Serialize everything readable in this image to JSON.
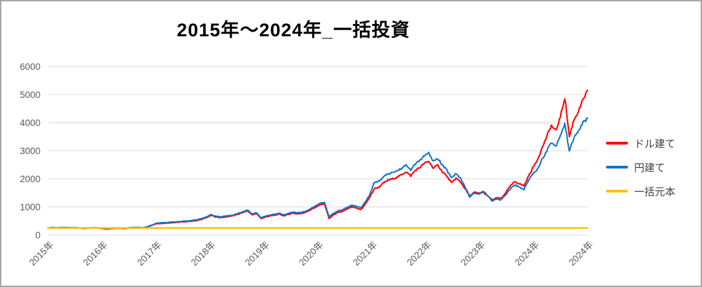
{
  "chart_data": {
    "type": "line",
    "title": "2015年～2024年_一括投資",
    "xlabel": "",
    "ylabel": "",
    "ylim": [
      0,
      6000
    ],
    "y_ticks": [
      0,
      1000,
      2000,
      3000,
      4000,
      5000,
      6000
    ],
    "x_tick_labels": [
      "2015年",
      "2016年",
      "2017年",
      "2018年",
      "2019年",
      "2020年",
      "2021年",
      "2022年",
      "2023年",
      "2024年",
      "2024年"
    ],
    "grid": "horizontal",
    "legend_position": "right",
    "x_start": "2015-01",
    "x_step": "monthly",
    "series": [
      {
        "name": "ドル建て",
        "color": "#fe0000",
        "values": [
          250,
          256,
          252,
          258,
          260,
          254,
          256,
          242,
          230,
          245,
          252,
          246,
          232,
          212,
          228,
          240,
          238,
          230,
          250,
          258,
          255,
          248,
          290,
          350,
          400,
          410,
          418,
          430,
          442,
          455,
          468,
          478,
          495,
          520,
          560,
          620,
          700,
          640,
          620,
          635,
          665,
          690,
          740,
          800,
          860,
          720,
          760,
          585,
          640,
          680,
          700,
          740,
          680,
          730,
          780,
          750,
          770,
          820,
          900,
          980,
          1080,
          1100,
          585,
          720,
          800,
          840,
          920,
          1000,
          950,
          900,
          1100,
          1350,
          1650,
          1700,
          1850,
          1950,
          2000,
          2050,
          2150,
          2250,
          2100,
          2300,
          2400,
          2550,
          2620,
          2380,
          2480,
          2250,
          2080,
          1850,
          2020,
          1880,
          1650,
          1380,
          1520,
          1480,
          1520,
          1380,
          1250,
          1320,
          1300,
          1520,
          1750,
          1900,
          1820,
          1750,
          2100,
          2400,
          2700,
          3100,
          3500,
          3900,
          3700,
          4200,
          4900,
          3500,
          4100,
          4400,
          4800,
          5150
        ]
      },
      {
        "name": "円建て",
        "color": "#1673c8",
        "values": [
          258,
          264,
          260,
          266,
          268,
          262,
          264,
          250,
          240,
          254,
          260,
          254,
          242,
          222,
          238,
          250,
          248,
          240,
          260,
          268,
          265,
          258,
          300,
          355,
          420,
          430,
          438,
          450,
          462,
          478,
          492,
          502,
          520,
          545,
          588,
          650,
          725,
          668,
          648,
          662,
          692,
          718,
          768,
          830,
          890,
          748,
          790,
          610,
          672,
          712,
          735,
          775,
          715,
          765,
          818,
          788,
          808,
          860,
          945,
          1030,
          1130,
          1160,
          650,
          770,
          860,
          900,
          985,
          1070,
          1020,
          970,
          1180,
          1440,
          1870,
          1920,
          2070,
          2170,
          2220,
          2280,
          2380,
          2480,
          2320,
          2520,
          2650,
          2820,
          2900,
          2620,
          2720,
          2480,
          2300,
          2040,
          2190,
          2010,
          1720,
          1350,
          1500,
          1440,
          1560,
          1400,
          1200,
          1280,
          1250,
          1450,
          1650,
          1780,
          1700,
          1620,
          1950,
          2200,
          2350,
          2700,
          3000,
          3300,
          3150,
          3550,
          3950,
          3000,
          3450,
          3700,
          4000,
          4150
        ]
      },
      {
        "name": "一括元本",
        "color": "#ffc000",
        "constant": 250
      }
    ]
  },
  "colors": {
    "grid": "#d9d9d9",
    "axis_text": "#595959",
    "title_text": "#000000",
    "frame_border": "#a6a6a6",
    "legend_text": "#404040"
  }
}
